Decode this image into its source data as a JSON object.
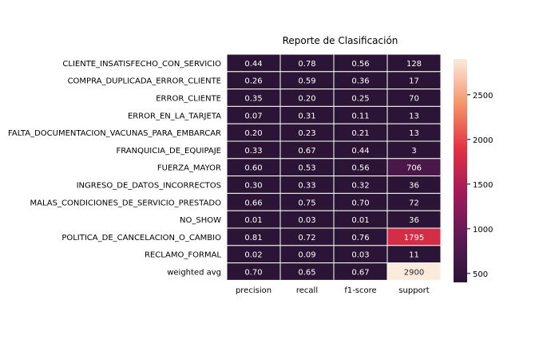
{
  "chart_data": {
    "type": "heatmap",
    "title": "Reporte de Clasificación",
    "columns": [
      "precision",
      "recall",
      "f1-score",
      "support"
    ],
    "rows": [
      "CLIENTE_INSATISFECHO_CON_SERVICIO",
      "COMPRA_DUPLICADA_ERROR_CLIENTE",
      "ERROR_CLIENTE",
      "ERROR_EN_LA_TARJETA",
      "FALTA_DOCUMENTACION_VACUNAS_PARA_EMBARCAR",
      "FRANQUICIA_DE_EQUIPAJE",
      "FUERZA_MAYOR",
      "INGRESO_DE_DATOS_INCORRECTOS",
      "MALAS_CONDICIONES_DE_SERVICIO_PRESTADO",
      "NO_SHOW",
      "POLITICA_DE_CANCELACION_O_CAMBIO",
      "RECLAMO_FORMAL",
      "weighted avg"
    ],
    "values": [
      [
        0.44,
        0.78,
        0.56,
        128
      ],
      [
        0.26,
        0.59,
        0.36,
        17
      ],
      [
        0.35,
        0.2,
        0.25,
        70
      ],
      [
        0.07,
        0.31,
        0.11,
        13
      ],
      [
        0.2,
        0.23,
        0.21,
        13
      ],
      [
        0.33,
        0.67,
        0.44,
        3
      ],
      [
        0.6,
        0.53,
        0.56,
        706
      ],
      [
        0.3,
        0.33,
        0.32,
        36
      ],
      [
        0.66,
        0.75,
        0.7,
        72
      ],
      [
        0.01,
        0.03,
        0.01,
        36
      ],
      [
        0.81,
        0.72,
        0.76,
        1795
      ],
      [
        0.02,
        0.09,
        0.03,
        11
      ],
      [
        0.7,
        0.65,
        0.67,
        2900
      ]
    ],
    "value_labels": [
      [
        "0.44",
        "0.78",
        "0.56",
        "128"
      ],
      [
        "0.26",
        "0.59",
        "0.36",
        "17"
      ],
      [
        "0.35",
        "0.20",
        "0.25",
        "70"
      ],
      [
        "0.07",
        "0.31",
        "0.11",
        "13"
      ],
      [
        "0.20",
        "0.23",
        "0.21",
        "13"
      ],
      [
        "0.33",
        "0.67",
        "0.44",
        "3"
      ],
      [
        "0.60",
        "0.53",
        "0.56",
        "706"
      ],
      [
        "0.30",
        "0.33",
        "0.32",
        "36"
      ],
      [
        "0.66",
        "0.75",
        "0.70",
        "72"
      ],
      [
        "0.01",
        "0.03",
        "0.01",
        "36"
      ],
      [
        "0.81",
        "0.72",
        "0.76",
        "1795"
      ],
      [
        "0.02",
        "0.09",
        "0.03",
        "11"
      ],
      [
        "0.70",
        "0.65",
        "0.67",
        "2900"
      ]
    ],
    "colorbar": {
      "colormap": "rocket",
      "vmin": 400,
      "vmax": 2900,
      "ticks": [
        500,
        1000,
        1500,
        2000,
        2500
      ],
      "tick_labels": [
        "500",
        "1000",
        "1500",
        "2000",
        "2500"
      ]
    },
    "grid": true,
    "legend": "right"
  }
}
